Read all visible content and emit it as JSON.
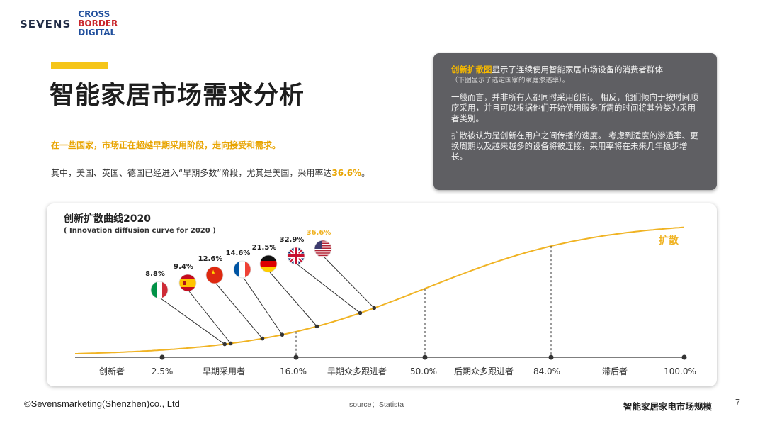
{
  "logo": {
    "sevens": "SEVENS",
    "cross": "CROSS",
    "border": "BORDER",
    "digital": "DIGITAL"
  },
  "page": {
    "title": "智能家居市场需求分析",
    "subtitle": "在一些国家，市场正在超越早期采用阶段，走向接受和需求。",
    "body_prefix": "其中，美国、英国、德国已经进入“早期多数”阶段，尤其是美国，采用率达",
    "body_highlight": "36.6%",
    "body_suffix": "。"
  },
  "info_box": {
    "term": "创新扩散图",
    "line1_rest": "显示了连续使用智能家居市场设备的消费者群体",
    "line2": "（下图显示了选定国家的家庭渗透率）。",
    "para2": "一般而言，并非所有人都同时采用创新。 相反，他们倾向于按时间顺序采用，并且可以根据他们开始使用服务所需的时间将其分类为采用者类别。",
    "para3": "扩散被认为是创新在用户之间传播的速度。 考虑到适度的渗透率、更换周期以及越来越多的设备将被连接，采用率将在未来几年稳步增长。"
  },
  "chart_data": {
    "type": "line",
    "title": "创新扩散曲线2020",
    "subtitle": "( Innovation diffusion curve for 2020 )",
    "curve_label": "扩散",
    "x_axis_labels": [
      "创新者",
      "2.5%",
      "早期采用者",
      "16.0%",
      "早期众多跟进者",
      "50.0%",
      "后期众多跟进者",
      "84.0%",
      "滞后者",
      "100.0%"
    ],
    "breakpoints": [
      2.5,
      16.0,
      50.0,
      84.0,
      100.0
    ],
    "countries": [
      {
        "name": "Italy",
        "value": 8.8,
        "label": "8.8%"
      },
      {
        "name": "Spain",
        "value": 9.4,
        "label": "9.4%"
      },
      {
        "name": "China",
        "value": 12.6,
        "label": "12.6%"
      },
      {
        "name": "France",
        "value": 14.6,
        "label": "14.6%"
      },
      {
        "name": "Germany",
        "value": 21.5,
        "label": "21.5%"
      },
      {
        "name": "United Kingdom",
        "value": 32.9,
        "label": "32.9%"
      },
      {
        "name": "United States",
        "value": 36.6,
        "label": "36.6%",
        "highlight": true
      }
    ],
    "colors": {
      "curve": "#f0b323",
      "highlight": "#f0b323",
      "axis": "#333333"
    }
  },
  "footer": {
    "copyright": "©Sevensmarketing(Shenzhen)co., Ltd",
    "source": "source：Statista",
    "report": "智能家居家电市场规模",
    "page_number": "7"
  }
}
